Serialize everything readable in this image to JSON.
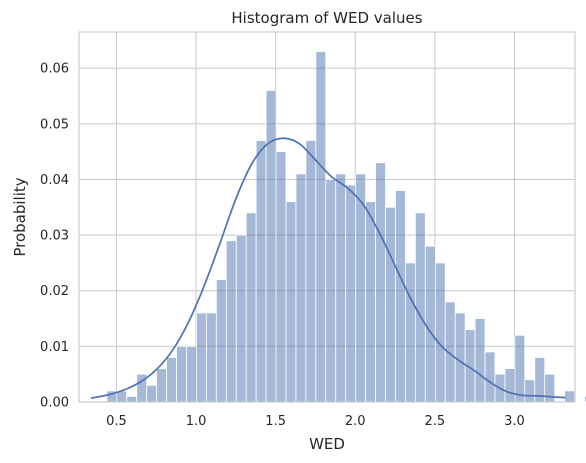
{
  "chart_data": {
    "type": "bar",
    "title": "Histogram of WED values",
    "xlabel": "WED",
    "ylabel": "Probability",
    "xlim": [
      0.265,
      3.38
    ],
    "ylim": [
      0.0,
      0.0665
    ],
    "x_ticks": [
      "0.5",
      "1.0",
      "1.5",
      "2.0",
      "2.5",
      "3.0"
    ],
    "y_ticks": [
      "0.00",
      "0.01",
      "0.02",
      "0.03",
      "0.04",
      "0.05",
      "0.06"
    ],
    "grid": true,
    "bin_start": 0.44,
    "bin_width": 0.0625,
    "values": [
      0.002,
      0.002,
      0.001,
      0.005,
      0.003,
      0.006,
      0.008,
      0.01,
      0.01,
      0.016,
      0.016,
      0.022,
      0.029,
      0.03,
      0.034,
      0.047,
      0.056,
      0.045,
      0.036,
      0.041,
      0.047,
      0.063,
      0.04,
      0.041,
      0.039,
      0.041,
      0.036,
      0.043,
      0.035,
      0.038,
      0.025,
      0.034,
      0.028,
      0.025,
      0.018,
      0.016,
      0.013,
      0.015,
      0.009,
      0.005,
      0.006,
      0.012,
      0.004,
      0.008,
      0.005,
      0.0,
      0.002,
      0.0,
      0.001,
      0.002,
      0.001,
      0.0
    ],
    "kde": {
      "x": [
        0.34,
        0.45,
        0.55,
        0.65,
        0.75,
        0.85,
        0.95,
        1.05,
        1.15,
        1.25,
        1.35,
        1.45,
        1.55,
        1.65,
        1.75,
        1.85,
        1.95,
        2.05,
        2.15,
        2.25,
        2.35,
        2.45,
        2.55,
        2.65,
        2.75,
        2.85,
        2.95,
        3.05,
        3.15,
        3.25,
        3.32
      ],
      "y": [
        0.0007,
        0.0013,
        0.0022,
        0.0036,
        0.0058,
        0.0092,
        0.0142,
        0.0208,
        0.0285,
        0.0365,
        0.0428,
        0.0464,
        0.0474,
        0.0464,
        0.0435,
        0.0405,
        0.0385,
        0.0355,
        0.0305,
        0.0245,
        0.0185,
        0.0135,
        0.0098,
        0.0075,
        0.0056,
        0.0035,
        0.0019,
        0.0012,
        0.0011,
        0.0009,
        0.0008
      ]
    },
    "colors": {
      "bar_fill": "#4c72b0",
      "bar_alpha": 0.5,
      "kde_line": "#4c72b0",
      "grid": "#cccccc",
      "frame": "#cccccc"
    }
  }
}
